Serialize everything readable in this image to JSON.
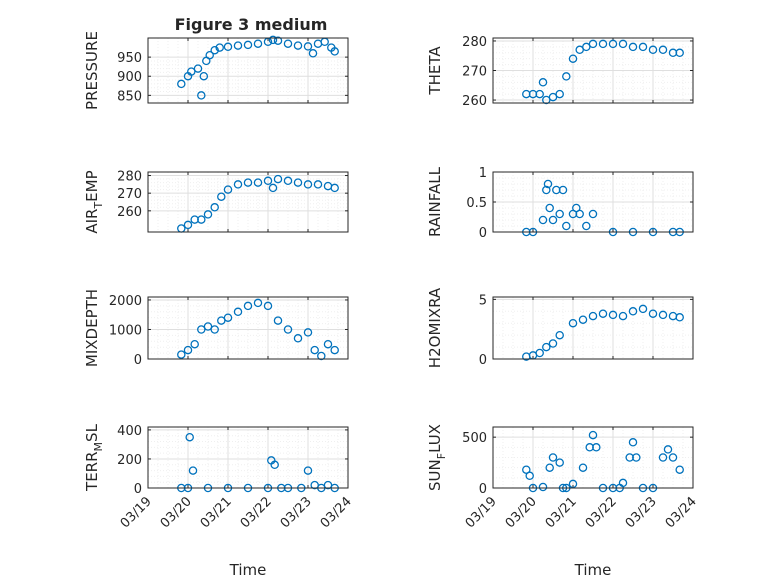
{
  "figure_title": "Figure 3 medium",
  "marker_color": "#0072bd",
  "chart_data": [
    {
      "type": "scatter",
      "ylabel": "PRESSURE",
      "ylim": [
        830,
        1000
      ],
      "yticks": [
        "850",
        "900",
        "950"
      ],
      "title": "Figure 3 medium",
      "grid": true,
      "x": [
        "03/19 20:00",
        "03/20 00:00",
        "03/20 02:00",
        "03/20 06:00",
        "03/20 08:00",
        "03/20 09:30",
        "03/20 11:00",
        "03/20 13:00",
        "03/20 16:00",
        "03/20 19:00",
        "03/21 00:00",
        "03/21 06:00",
        "03/21 12:00",
        "03/21 18:00",
        "03/22 00:00",
        "03/22 03:00",
        "03/22 06:00",
        "03/22 12:00",
        "03/22 18:00",
        "03/23 00:00",
        "03/23 03:00",
        "03/23 06:00",
        "03/23 10:00",
        "03/23 14:00",
        "03/23 16:00"
      ],
      "y": [
        880,
        900,
        912,
        920,
        850,
        900,
        940,
        955,
        968,
        975,
        977,
        980,
        982,
        985,
        990,
        995,
        993,
        985,
        980,
        978,
        960,
        985,
        990,
        975,
        965
      ]
    },
    {
      "type": "scatter",
      "ylabel": "THETA",
      "ylim": [
        259,
        281
      ],
      "yticks": [
        "260",
        "270",
        "280"
      ],
      "grid": true,
      "x": [
        "03/19 20:00",
        "03/20 00:00",
        "03/20 04:00",
        "03/20 06:00",
        "03/20 08:00",
        "03/20 12:00",
        "03/20 16:00",
        "03/20 20:00",
        "03/21 00:00",
        "03/21 04:00",
        "03/21 08:00",
        "03/21 12:00",
        "03/21 18:00",
        "03/22 00:00",
        "03/22 06:00",
        "03/22 12:00",
        "03/22 18:00",
        "03/23 00:00",
        "03/23 06:00",
        "03/23 12:00",
        "03/23 16:00"
      ],
      "y": [
        262,
        262,
        262,
        266,
        260,
        261,
        262,
        268,
        274,
        277,
        278,
        279,
        279,
        279,
        279,
        278,
        278,
        277,
        277,
        276,
        276
      ]
    },
    {
      "type": "scatter",
      "ylabel": "AIR_TEMP",
      "ylim": [
        248,
        282
      ],
      "yticks": [
        "260",
        "270",
        "280"
      ],
      "grid": true,
      "x": [
        "03/19 20:00",
        "03/20 00:00",
        "03/20 04:00",
        "03/20 08:00",
        "03/20 12:00",
        "03/20 16:00",
        "03/20 20:00",
        "03/21 00:00",
        "03/21 06:00",
        "03/21 12:00",
        "03/21 18:00",
        "03/22 00:00",
        "03/22 03:00",
        "03/22 06:00",
        "03/22 12:00",
        "03/22 18:00",
        "03/23 00:00",
        "03/23 06:00",
        "03/23 12:00",
        "03/23 16:00"
      ],
      "y": [
        250,
        252,
        255,
        255,
        258,
        262,
        268,
        272,
        275,
        276,
        276,
        277,
        273,
        278,
        277,
        276,
        275,
        275,
        274,
        273
      ]
    },
    {
      "type": "scatter",
      "ylabel": "RAINFALL",
      "ylim": [
        0,
        1
      ],
      "yticks": [
        "0",
        "0.5",
        "1"
      ],
      "grid": true,
      "x": [
        "03/19 20:00",
        "03/20 00:00",
        "03/20 06:00",
        "03/20 08:00",
        "03/20 09:00",
        "03/20 10:00",
        "03/20 12:00",
        "03/20 14:00",
        "03/20 16:00",
        "03/20 18:00",
        "03/20 20:00",
        "03/21 00:00",
        "03/21 02:00",
        "03/21 04:00",
        "03/21 08:00",
        "03/21 12:00",
        "03/22 00:00",
        "03/22 12:00",
        "03/23 00:00",
        "03/23 12:00",
        "03/23 16:00"
      ],
      "y": [
        0,
        0,
        0.2,
        0.7,
        0.8,
        0.4,
        0.2,
        0.7,
        0.3,
        0.7,
        0.1,
        0.3,
        0.4,
        0.3,
        0.1,
        0.3,
        0,
        0,
        0,
        0,
        0
      ]
    },
    {
      "type": "scatter",
      "ylabel": "MIXDEPTH",
      "ylim": [
        0,
        2100
      ],
      "yticks": [
        "0",
        "1000",
        "2000"
      ],
      "grid": true,
      "x": [
        "03/19 20:00",
        "03/20 00:00",
        "03/20 04:00",
        "03/20 08:00",
        "03/20 12:00",
        "03/20 16:00",
        "03/20 20:00",
        "03/21 00:00",
        "03/21 06:00",
        "03/21 12:00",
        "03/21 18:00",
        "03/22 00:00",
        "03/22 06:00",
        "03/22 12:00",
        "03/22 18:00",
        "03/23 00:00",
        "03/23 04:00",
        "03/23 08:00",
        "03/23 12:00",
        "03/23 16:00"
      ],
      "y": [
        150,
        300,
        500,
        1000,
        1100,
        1000,
        1300,
        1400,
        1600,
        1800,
        1900,
        1800,
        1300,
        1000,
        700,
        900,
        300,
        100,
        500,
        300
      ]
    },
    {
      "type": "scatter",
      "ylabel": "H2OMIXRA",
      "ylim": [
        0,
        5.2
      ],
      "yticks": [
        "0",
        "5"
      ],
      "grid": true,
      "x": [
        "03/19 20:00",
        "03/20 00:00",
        "03/20 04:00",
        "03/20 08:00",
        "03/20 12:00",
        "03/20 16:00",
        "03/21 00:00",
        "03/21 06:00",
        "03/21 12:00",
        "03/21 18:00",
        "03/22 00:00",
        "03/22 06:00",
        "03/22 12:00",
        "03/22 18:00",
        "03/23 00:00",
        "03/23 06:00",
        "03/23 12:00",
        "03/23 16:00"
      ],
      "y": [
        0.2,
        0.3,
        0.5,
        1.0,
        1.3,
        2.0,
        3.0,
        3.3,
        3.6,
        3.8,
        3.7,
        3.6,
        4.0,
        4.2,
        3.8,
        3.7,
        3.6,
        3.5
      ]
    },
    {
      "type": "scatter",
      "ylabel": "TERR_MSL",
      "ylim": [
        0,
        420
      ],
      "yticks": [
        "0",
        "200",
        "400"
      ],
      "grid": true,
      "x": [
        "03/19 20:00",
        "03/20 00:00",
        "03/20 01:00",
        "03/20 03:00",
        "03/20 12:00",
        "03/21 00:00",
        "03/21 12:00",
        "03/22 00:00",
        "03/22 02:00",
        "03/22 04:00",
        "03/22 08:00",
        "03/22 12:00",
        "03/22 20:00",
        "03/23 00:00",
        "03/23 04:00",
        "03/23 08:00",
        "03/23 12:00",
        "03/23 16:00"
      ],
      "y": [
        0,
        0,
        350,
        120,
        0,
        0,
        0,
        0,
        190,
        160,
        0,
        0,
        0,
        120,
        20,
        0,
        20,
        0
      ]
    },
    {
      "type": "scatter",
      "ylabel": "SUN_FLUX",
      "ylim": [
        0,
        600
      ],
      "yticks": [
        "0",
        "500"
      ],
      "grid": true,
      "x": [
        "03/19 20:00",
        "03/19 22:00",
        "03/20 00:00",
        "03/20 06:00",
        "03/20 10:00",
        "03/20 12:00",
        "03/20 16:00",
        "03/20 18:00",
        "03/20 20:00",
        "03/21 00:00",
        "03/21 06:00",
        "03/21 10:00",
        "03/21 12:00",
        "03/21 14:00",
        "03/21 18:00",
        "03/22 00:00",
        "03/22 04:00",
        "03/22 06:00",
        "03/22 10:00",
        "03/22 12:00",
        "03/22 14:00",
        "03/22 18:00",
        "03/23 00:00",
        "03/23 06:00",
        "03/23 09:00",
        "03/23 12:00",
        "03/23 16:00"
      ],
      "y": [
        180,
        120,
        0,
        10,
        200,
        300,
        250,
        0,
        0,
        40,
        200,
        400,
        520,
        400,
        0,
        0,
        0,
        50,
        300,
        450,
        300,
        0,
        0,
        300,
        380,
        300,
        180
      ]
    }
  ],
  "xaxis": {
    "label": "Time",
    "ticks": [
      "03/19",
      "03/20",
      "03/21",
      "03/22",
      "03/23",
      "03/24"
    ]
  }
}
